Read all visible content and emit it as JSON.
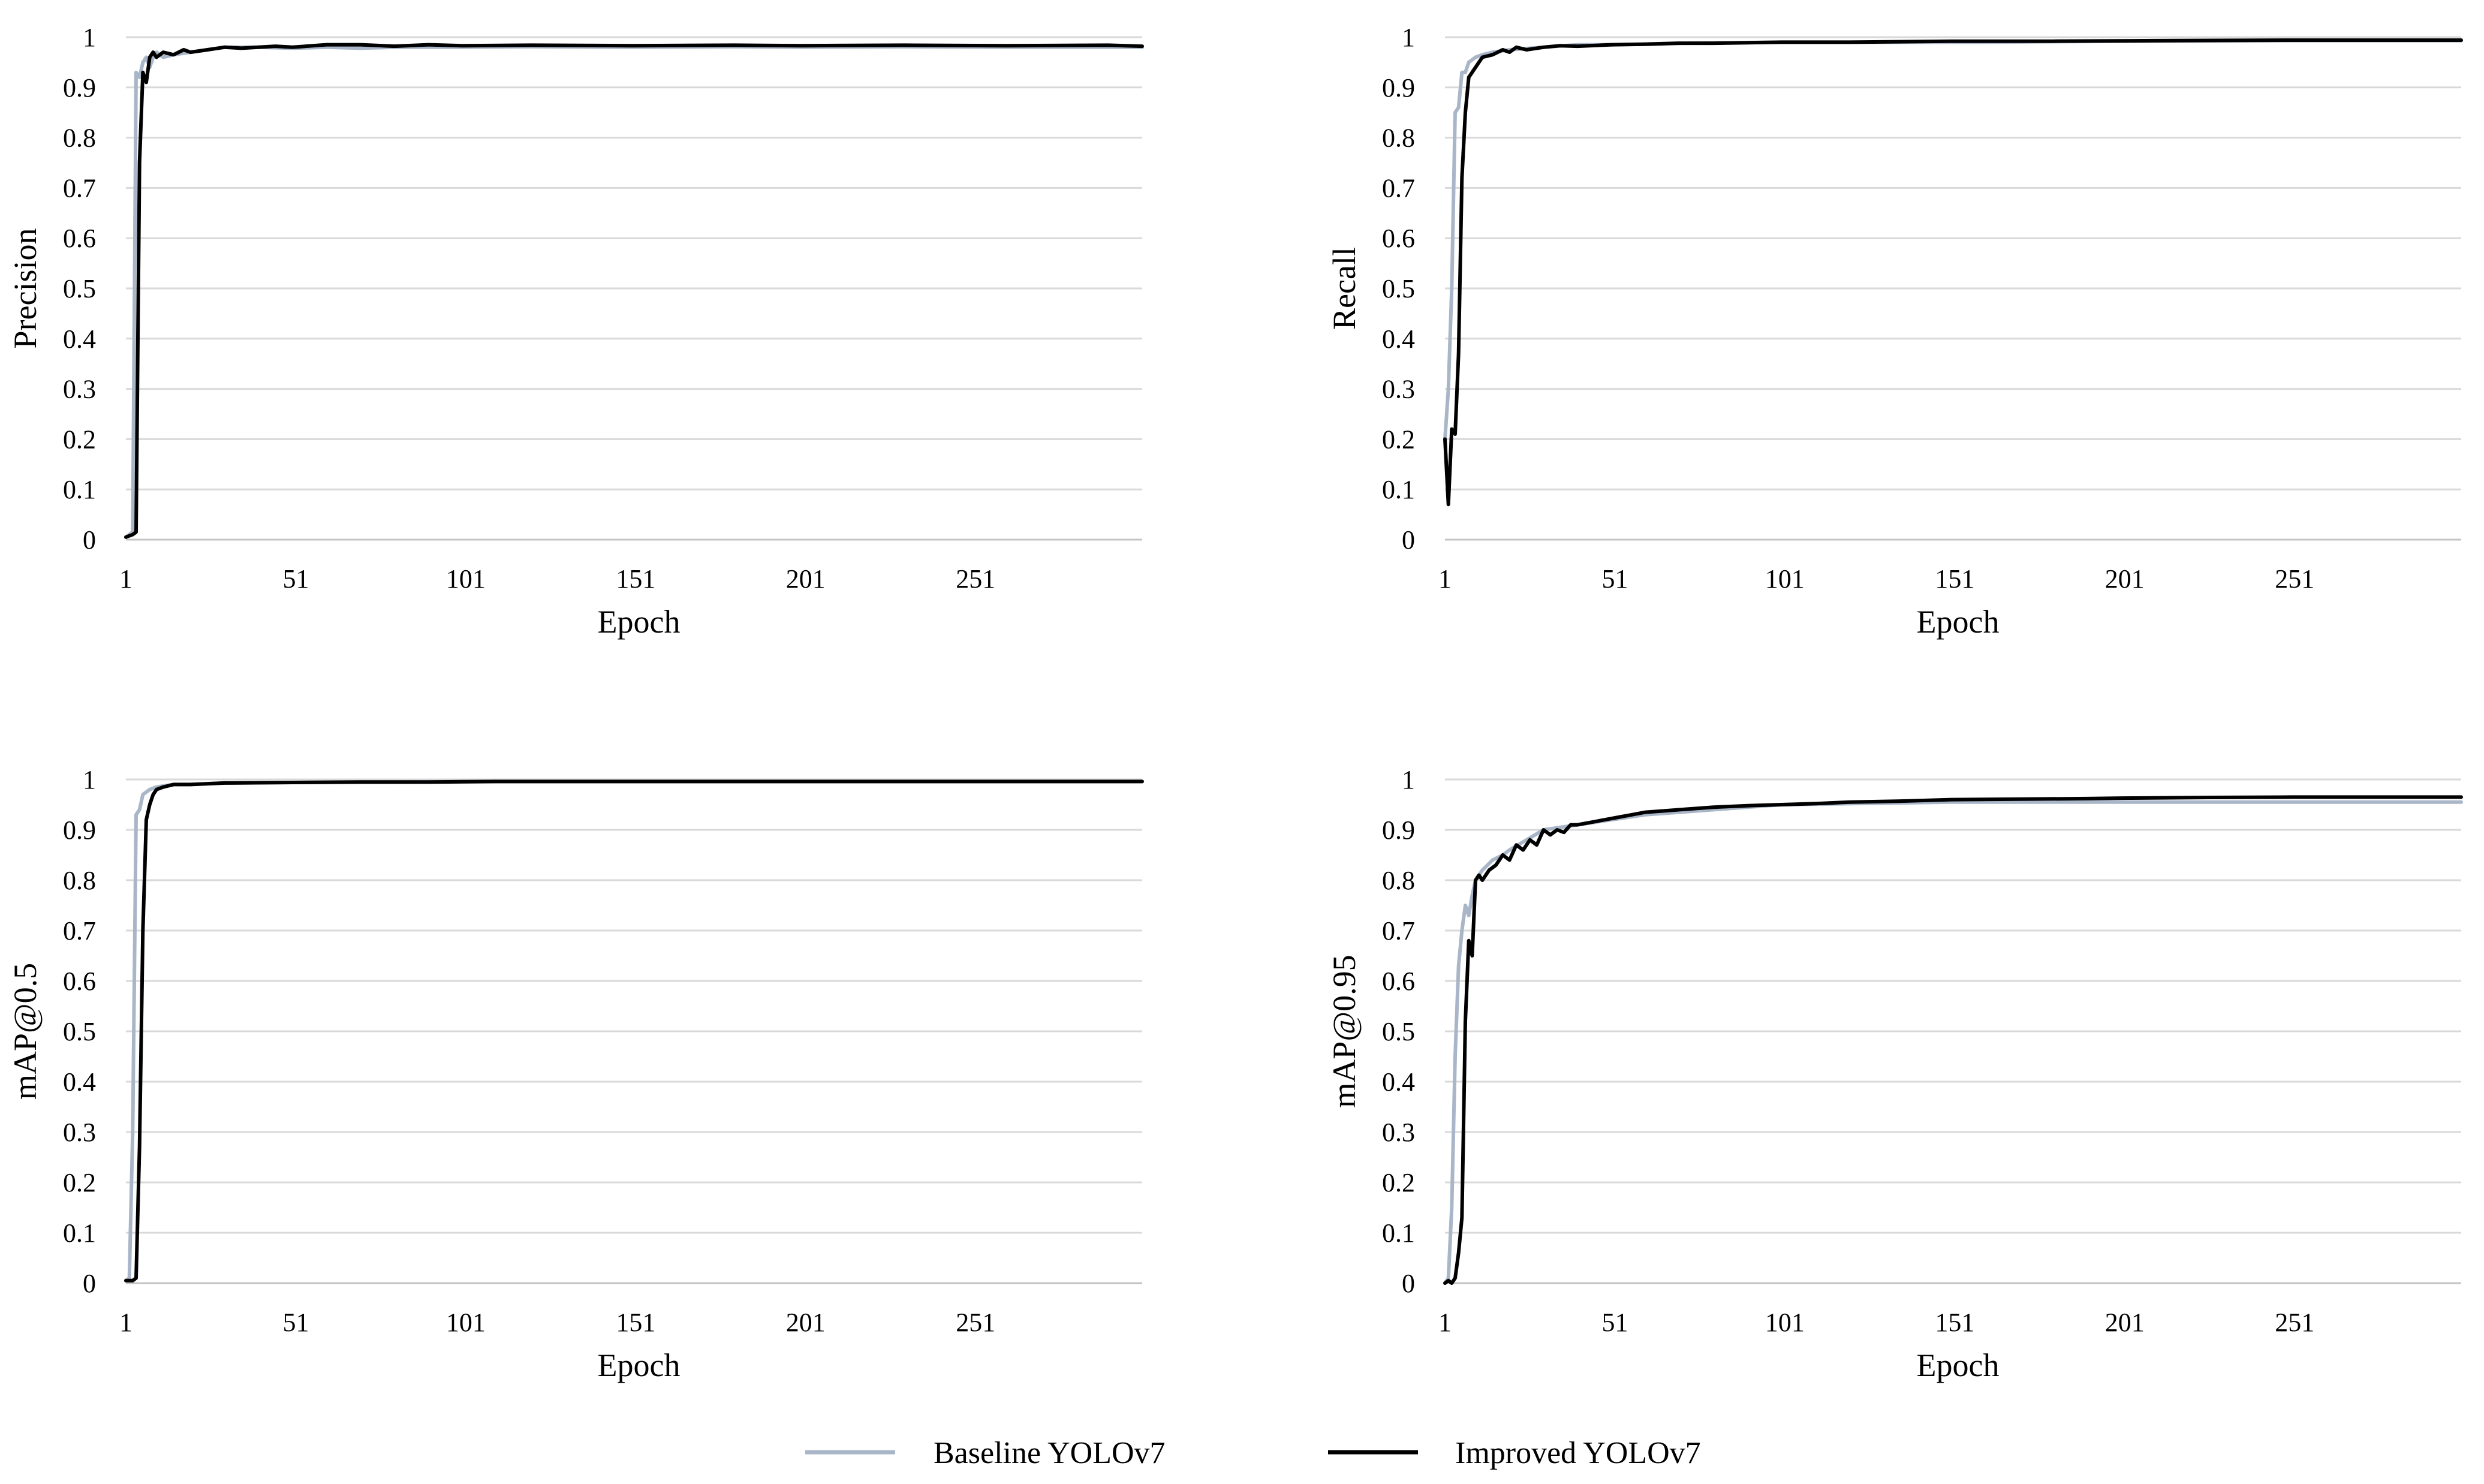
{
  "figure": {
    "legend": [
      {
        "label": "Baseline YOLOv7",
        "color": "#A9B6C8"
      },
      {
        "label": "Improved YOLOv7",
        "color": "#000000"
      }
    ]
  },
  "chart_data": [
    {
      "type": "line",
      "panel": "top-left",
      "ylabel": "Precision",
      "xlabel": "Epoch",
      "x_ticks": [
        "1",
        "51",
        "101",
        "151",
        "201",
        "251"
      ],
      "y_ticks": [
        "0",
        "0.1",
        "0.2",
        "0.3",
        "0.4",
        "0.5",
        "0.6",
        "0.7",
        "0.8",
        "0.9",
        "1"
      ],
      "xlim": [
        1,
        300
      ],
      "ylim": [
        0,
        1
      ],
      "series": [
        {
          "name": "Baseline YOLOv7",
          "color": "#A9B6C8",
          "points": [
            [
              1,
              0.005
            ],
            [
              2,
              0.01
            ],
            [
              3,
              0.015
            ],
            [
              4,
              0.93
            ],
            [
              5,
              0.92
            ],
            [
              6,
              0.95
            ],
            [
              7,
              0.96
            ],
            [
              8,
              0.94
            ],
            [
              9,
              0.96
            ],
            [
              10,
              0.97
            ],
            [
              12,
              0.96
            ],
            [
              15,
              0.965
            ],
            [
              20,
              0.97
            ],
            [
              25,
              0.975
            ],
            [
              30,
              0.98
            ],
            [
              40,
              0.98
            ],
            [
              50,
              0.978
            ],
            [
              60,
              0.98
            ],
            [
              70,
              0.978
            ],
            [
              80,
              0.98
            ],
            [
              100,
              0.98
            ],
            [
              120,
              0.981
            ],
            [
              150,
              0.98
            ],
            [
              180,
              0.981
            ],
            [
              200,
              0.98
            ],
            [
              230,
              0.981
            ],
            [
              260,
              0.98
            ],
            [
              300,
              0.98
            ]
          ]
        },
        {
          "name": "Improved YOLOv7",
          "color": "#000000",
          "points": [
            [
              1,
              0.005
            ],
            [
              3,
              0.01
            ],
            [
              4,
              0.015
            ],
            [
              5,
              0.75
            ],
            [
              6,
              0.93
            ],
            [
              7,
              0.91
            ],
            [
              8,
              0.96
            ],
            [
              9,
              0.97
            ],
            [
              10,
              0.96
            ],
            [
              12,
              0.97
            ],
            [
              15,
              0.965
            ],
            [
              18,
              0.975
            ],
            [
              20,
              0.97
            ],
            [
              25,
              0.975
            ],
            [
              30,
              0.98
            ],
            [
              35,
              0.978
            ],
            [
              40,
              0.98
            ],
            [
              45,
              0.982
            ],
            [
              50,
              0.98
            ],
            [
              60,
              0.985
            ],
            [
              70,
              0.985
            ],
            [
              80,
              0.982
            ],
            [
              90,
              0.985
            ],
            [
              100,
              0.983
            ],
            [
              120,
              0.984
            ],
            [
              150,
              0.983
            ],
            [
              180,
              0.984
            ],
            [
              200,
              0.983
            ],
            [
              230,
              0.984
            ],
            [
              260,
              0.983
            ],
            [
              290,
              0.984
            ],
            [
              300,
              0.982
            ]
          ]
        }
      ]
    },
    {
      "type": "line",
      "panel": "top-right",
      "ylabel": "Recall",
      "xlabel": "Epoch",
      "x_ticks": [
        "1",
        "51",
        "101",
        "151",
        "201",
        "251"
      ],
      "y_ticks": [
        "0",
        "0.1",
        "0.2",
        "0.3",
        "0.4",
        "0.5",
        "0.6",
        "0.7",
        "0.8",
        "0.9",
        "1"
      ],
      "xlim": [
        1,
        300
      ],
      "ylim": [
        0,
        1
      ],
      "series": [
        {
          "name": "Baseline YOLOv7",
          "color": "#A9B6C8",
          "points": [
            [
              1,
              0.2
            ],
            [
              2,
              0.3
            ],
            [
              3,
              0.5
            ],
            [
              4,
              0.85
            ],
            [
              5,
              0.86
            ],
            [
              6,
              0.93
            ],
            [
              7,
              0.93
            ],
            [
              8,
              0.95
            ],
            [
              10,
              0.96
            ],
            [
              12,
              0.965
            ],
            [
              15,
              0.97
            ],
            [
              20,
              0.975
            ],
            [
              30,
              0.98
            ],
            [
              40,
              0.985
            ],
            [
              50,
              0.985
            ],
            [
              70,
              0.988
            ],
            [
              100,
              0.99
            ],
            [
              130,
              0.99
            ],
            [
              160,
              0.99
            ],
            [
              200,
              0.992
            ],
            [
              250,
              0.993
            ],
            [
              300,
              0.993
            ]
          ]
        },
        {
          "name": "Improved YOLOv7",
          "color": "#000000",
          "points": [
            [
              1,
              0.2
            ],
            [
              2,
              0.07
            ],
            [
              3,
              0.22
            ],
            [
              4,
              0.21
            ],
            [
              5,
              0.37
            ],
            [
              6,
              0.72
            ],
            [
              7,
              0.85
            ],
            [
              8,
              0.92
            ],
            [
              10,
              0.94
            ],
            [
              12,
              0.96
            ],
            [
              15,
              0.965
            ],
            [
              18,
              0.975
            ],
            [
              20,
              0.97
            ],
            [
              22,
              0.98
            ],
            [
              25,
              0.975
            ],
            [
              30,
              0.98
            ],
            [
              35,
              0.983
            ],
            [
              40,
              0.982
            ],
            [
              50,
              0.985
            ],
            [
              60,
              0.986
            ],
            [
              70,
              0.988
            ],
            [
              80,
              0.988
            ],
            [
              100,
              0.99
            ],
            [
              120,
              0.99
            ],
            [
              150,
              0.992
            ],
            [
              180,
              0.992
            ],
            [
              210,
              0.993
            ],
            [
              250,
              0.994
            ],
            [
              300,
              0.994
            ]
          ]
        }
      ]
    },
    {
      "type": "line",
      "panel": "bottom-left",
      "ylabel": "mAP@0.5",
      "xlabel": "Epoch",
      "x_ticks": [
        "1",
        "51",
        "101",
        "151",
        "201",
        "251"
      ],
      "y_ticks": [
        "0",
        "0.1",
        "0.2",
        "0.3",
        "0.4",
        "0.5",
        "0.6",
        "0.7",
        "0.8",
        "0.9",
        "1"
      ],
      "xlim": [
        1,
        300
      ],
      "ylim": [
        0,
        1
      ],
      "series": [
        {
          "name": "Baseline YOLOv7",
          "color": "#A9B6C8",
          "points": [
            [
              1,
              0.005
            ],
            [
              2,
              0.01
            ],
            [
              3,
              0.3
            ],
            [
              4,
              0.93
            ],
            [
              5,
              0.94
            ],
            [
              6,
              0.97
            ],
            [
              8,
              0.98
            ],
            [
              10,
              0.985
            ],
            [
              15,
              0.99
            ],
            [
              20,
              0.99
            ],
            [
              30,
              0.993
            ],
            [
              50,
              0.994
            ],
            [
              80,
              0.995
            ],
            [
              100,
              0.996
            ],
            [
              150,
              0.996
            ],
            [
              200,
              0.996
            ],
            [
              250,
              0.996
            ],
            [
              300,
              0.996
            ]
          ]
        },
        {
          "name": "Improved YOLOv7",
          "color": "#000000",
          "points": [
            [
              1,
              0.005
            ],
            [
              2,
              0.005
            ],
            [
              3,
              0.005
            ],
            [
              4,
              0.01
            ],
            [
              5,
              0.27
            ],
            [
              6,
              0.7
            ],
            [
              7,
              0.92
            ],
            [
              8,
              0.95
            ],
            [
              9,
              0.97
            ],
            [
              10,
              0.98
            ],
            [
              12,
              0.985
            ],
            [
              15,
              0.99
            ],
            [
              20,
              0.99
            ],
            [
              30,
              0.993
            ],
            [
              50,
              0.994
            ],
            [
              70,
              0.995
            ],
            [
              90,
              0.995
            ],
            [
              110,
              0.996
            ],
            [
              150,
              0.996
            ],
            [
              200,
              0.996
            ],
            [
              250,
              0.996
            ],
            [
              300,
              0.996
            ]
          ]
        }
      ]
    },
    {
      "type": "line",
      "panel": "bottom-right",
      "ylabel": "mAP@0.95",
      "xlabel": "Epoch",
      "x_ticks": [
        "1",
        "51",
        "101",
        "151",
        "201",
        "251"
      ],
      "y_ticks": [
        "0",
        "0.1",
        "0.2",
        "0.3",
        "0.4",
        "0.5",
        "0.6",
        "0.7",
        "0.8",
        "0.9",
        "1"
      ],
      "xlim": [
        1,
        300
      ],
      "ylim": [
        0,
        1
      ],
      "series": [
        {
          "name": "Baseline YOLOv7",
          "color": "#A9B6C8",
          "points": [
            [
              1,
              0.0
            ],
            [
              2,
              0.01
            ],
            [
              3,
              0.15
            ],
            [
              4,
              0.45
            ],
            [
              5,
              0.63
            ],
            [
              6,
              0.7
            ],
            [
              7,
              0.75
            ],
            [
              8,
              0.73
            ],
            [
              9,
              0.77
            ],
            [
              10,
              0.8
            ],
            [
              12,
              0.82
            ],
            [
              15,
              0.84
            ],
            [
              18,
              0.85
            ],
            [
              20,
              0.86
            ],
            [
              25,
              0.88
            ],
            [
              30,
              0.9
            ],
            [
              35,
              0.905
            ],
            [
              40,
              0.91
            ],
            [
              45,
              0.915
            ],
            [
              50,
              0.92
            ],
            [
              60,
              0.93
            ],
            [
              70,
              0.935
            ],
            [
              80,
              0.94
            ],
            [
              90,
              0.945
            ],
            [
              100,
              0.95
            ],
            [
              120,
              0.952
            ],
            [
              150,
              0.955
            ],
            [
              180,
              0.955
            ],
            [
              200,
              0.955
            ],
            [
              230,
              0.955
            ],
            [
              260,
              0.955
            ],
            [
              300,
              0.955
            ]
          ]
        },
        {
          "name": "Improved YOLOv7",
          "color": "#000000",
          "points": [
            [
              1,
              0.0
            ],
            [
              2,
              0.005
            ],
            [
              3,
              0.0
            ],
            [
              4,
              0.01
            ],
            [
              5,
              0.06
            ],
            [
              6,
              0.13
            ],
            [
              7,
              0.52
            ],
            [
              8,
              0.68
            ],
            [
              9,
              0.65
            ],
            [
              10,
              0.8
            ],
            [
              11,
              0.81
            ],
            [
              12,
              0.8
            ],
            [
              14,
              0.82
            ],
            [
              16,
              0.83
            ],
            [
              18,
              0.85
            ],
            [
              20,
              0.84
            ],
            [
              22,
              0.87
            ],
            [
              24,
              0.86
            ],
            [
              26,
              0.88
            ],
            [
              28,
              0.87
            ],
            [
              30,
              0.9
            ],
            [
              32,
              0.89
            ],
            [
              34,
              0.9
            ],
            [
              36,
              0.895
            ],
            [
              38,
              0.91
            ],
            [
              40,
              0.91
            ],
            [
              44,
              0.915
            ],
            [
              48,
              0.92
            ],
            [
              52,
              0.925
            ],
            [
              56,
              0.93
            ],
            [
              60,
              0.935
            ],
            [
              66,
              0.938
            ],
            [
              70,
              0.94
            ],
            [
              80,
              0.945
            ],
            [
              90,
              0.948
            ],
            [
              100,
              0.95
            ],
            [
              110,
              0.952
            ],
            [
              120,
              0.955
            ],
            [
              135,
              0.957
            ],
            [
              150,
              0.96
            ],
            [
              170,
              0.961
            ],
            [
              190,
              0.962
            ],
            [
              200,
              0.963
            ],
            [
              220,
              0.964
            ],
            [
              250,
              0.965
            ],
            [
              280,
              0.965
            ],
            [
              300,
              0.965
            ]
          ]
        }
      ]
    }
  ]
}
